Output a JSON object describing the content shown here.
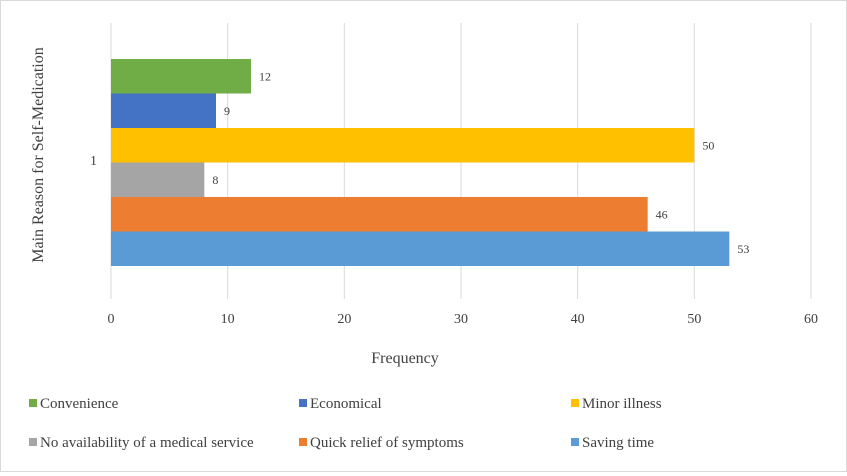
{
  "chart_data": {
    "type": "bar",
    "orientation": "horizontal",
    "categories": [
      "1"
    ],
    "ylabel": "Main Reason for Self-Medication",
    "xlabel": "Frequency",
    "xlim": [
      0,
      60
    ],
    "xticks": [
      0,
      10,
      20,
      30,
      40,
      50,
      60
    ],
    "grid": true,
    "legend_position": "bottom",
    "series": [
      {
        "name": "Saving time",
        "values": [
          53
        ],
        "color": "#5b9bd5"
      },
      {
        "name": "Quick relief of symptoms",
        "values": [
          46
        ],
        "color": "#ed7d31"
      },
      {
        "name": "No availability of a medical service",
        "values": [
          8
        ],
        "color": "#a5a5a5"
      },
      {
        "name": "Minor illness",
        "values": [
          50
        ],
        "color": "#ffc000"
      },
      {
        "name": "Economical",
        "values": [
          9
        ],
        "color": "#4472c4"
      },
      {
        "name": "Convenience",
        "values": [
          12
        ],
        "color": "#70ad47"
      }
    ],
    "legend_order": [
      "Convenience",
      "Economical",
      "Minor illness",
      "No availability of a medical service",
      "Quick relief of symptoms",
      "Saving time"
    ]
  }
}
